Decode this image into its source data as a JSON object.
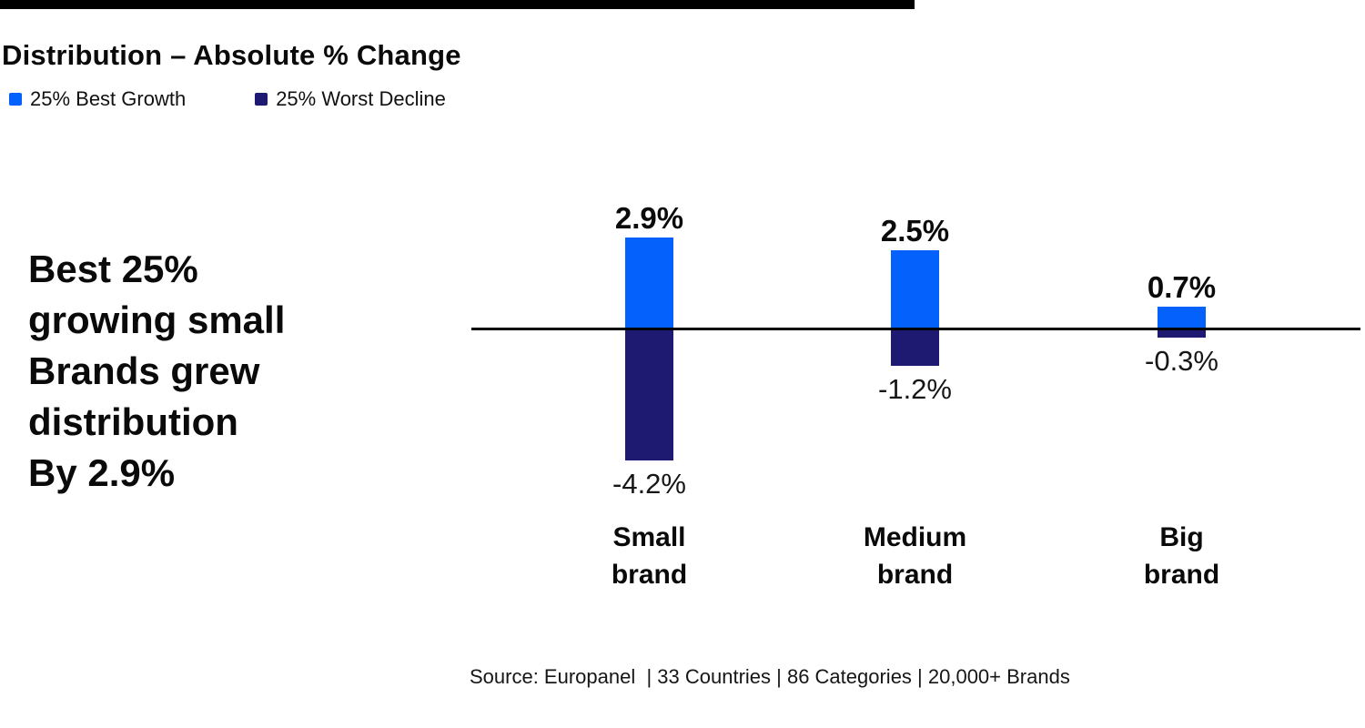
{
  "header": {
    "title": "Distribution – Absolute % Change"
  },
  "legend": {
    "position": "top-left",
    "items": [
      {
        "label": "25% Best Growth",
        "color": "#0561FC"
      },
      {
        "label": "25% Worst Decline",
        "color": "#1E1A72"
      }
    ]
  },
  "message": {
    "lines": [
      "Best 25%",
      "growing small",
      "Brands grew",
      "distribution",
      "By 2.9%"
    ]
  },
  "chart_data": {
    "type": "bar",
    "categories": [
      "Small brand",
      "Medium brand",
      "Big brand"
    ],
    "series": [
      {
        "name": "25% Best Growth",
        "color": "#0561FC",
        "values": [
          2.9,
          2.5,
          0.7
        ]
      },
      {
        "name": "25% Worst Decline",
        "color": "#1E1A72",
        "values": [
          -4.2,
          -1.2,
          -0.3
        ]
      }
    ],
    "value_labels": {
      "positive": [
        "2.9%",
        "2.5%",
        "0.7%"
      ],
      "negative": [
        "-4.2%",
        "-1.2%",
        "-0.3%"
      ]
    },
    "title": "Distribution – Absolute % Change",
    "xlabel": "",
    "ylabel": "",
    "ylim": [
      -4.5,
      3.2
    ],
    "grid": false,
    "baseline": 0,
    "legend_position": "top-left"
  },
  "source": {
    "text": "Source: Europanel  | 33 Countries | 86 Categories | 20,000+ Brands"
  },
  "colors": {
    "best_growth_blue": "#0561FC",
    "worst_decline_navy": "#1E1A72",
    "axis_black": "#000000"
  }
}
